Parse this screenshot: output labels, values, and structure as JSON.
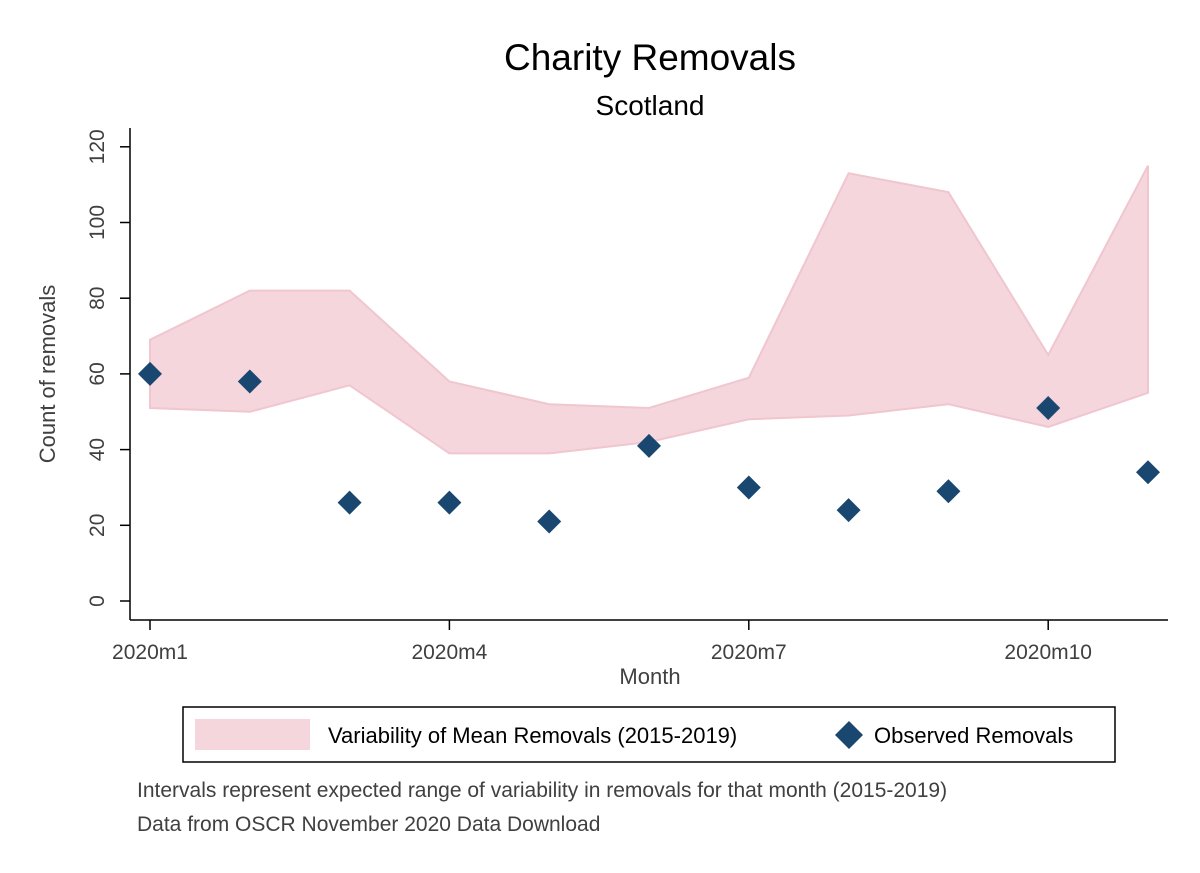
{
  "chart_data": {
    "type": "area",
    "title": "Charity Removals",
    "subtitle": "Scotland",
    "xlabel": "Month",
    "ylabel": "Count of removals",
    "x": [
      "2020m1",
      "2020m2",
      "2020m3",
      "2020m4",
      "2020m5",
      "2020m6",
      "2020m7",
      "2020m8",
      "2020m9",
      "2020m10",
      "2020m11"
    ],
    "x_ticks": [
      "2020m1",
      "2020m4",
      "2020m7",
      "2020m10"
    ],
    "y_ticks": [
      0,
      20,
      40,
      60,
      80,
      100,
      120
    ],
    "ylim": [
      0,
      120
    ],
    "grid": false,
    "legend_position": "bottom",
    "series": [
      {
        "name": "Variability of Mean Removals (2015-2019)",
        "kind": "range",
        "lower": [
          51,
          50,
          57,
          39,
          39,
          42,
          48,
          49,
          52,
          46,
          55
        ],
        "upper": [
          69,
          82,
          82,
          58,
          52,
          51,
          59,
          113,
          108,
          65,
          115
        ],
        "color": "#f4d6dc"
      },
      {
        "name": "Observed Removals",
        "kind": "scatter",
        "values": [
          60,
          58,
          26,
          26,
          21,
          41,
          30,
          24,
          29,
          51,
          34
        ],
        "color": "#1a476f"
      }
    ],
    "notes": [
      "Intervals represent expected range of variability in removals for that month (2015-2019)",
      "Data from OSCR November 2020 Data Download"
    ]
  }
}
